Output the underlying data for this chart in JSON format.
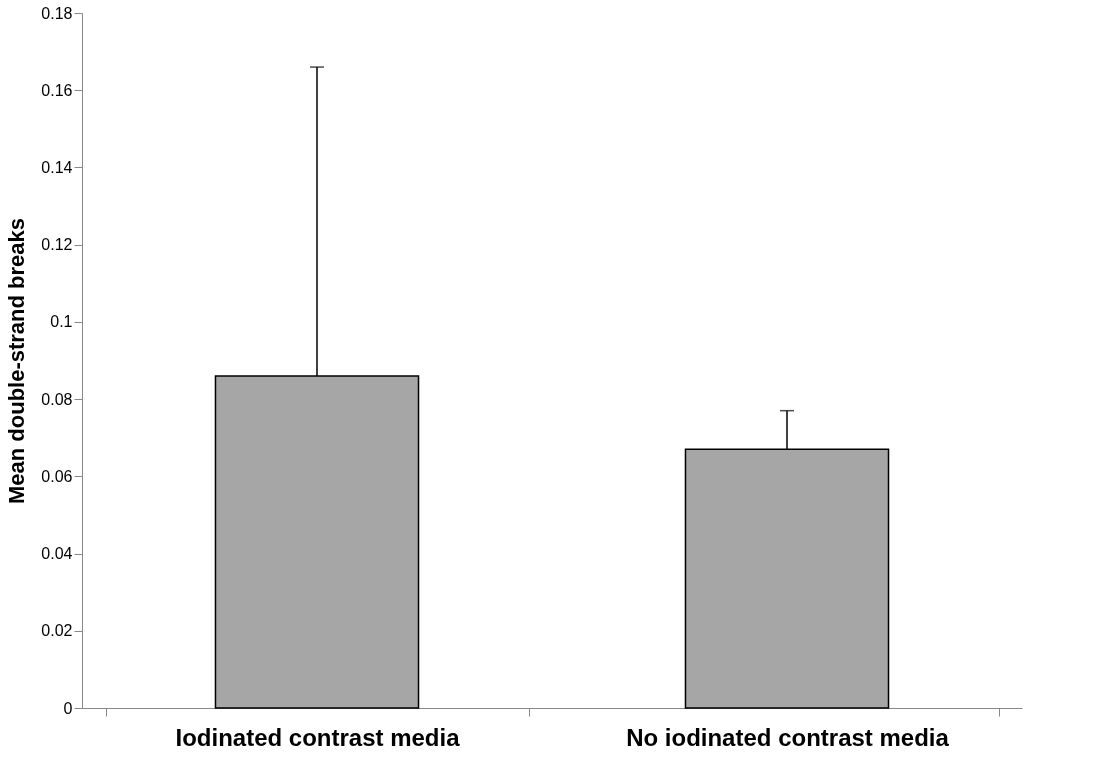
{
  "chart_data": {
    "type": "bar",
    "ylabel": "Mean double-strand breaks",
    "categories": [
      "Iodinated contrast media",
      "No iodinated contrast media"
    ],
    "values": [
      0.086,
      0.067
    ],
    "errors": [
      [
        0.086,
        0.166
      ],
      [
        0.067,
        0.077
      ]
    ],
    "color": "#a6a6a6",
    "ylim": [
      0,
      0.18
    ],
    "yticks": [
      0,
      0.02,
      0.04,
      0.06,
      0.08,
      0.1,
      0.12,
      0.14,
      0.16,
      0.18
    ],
    "grid": false
  }
}
